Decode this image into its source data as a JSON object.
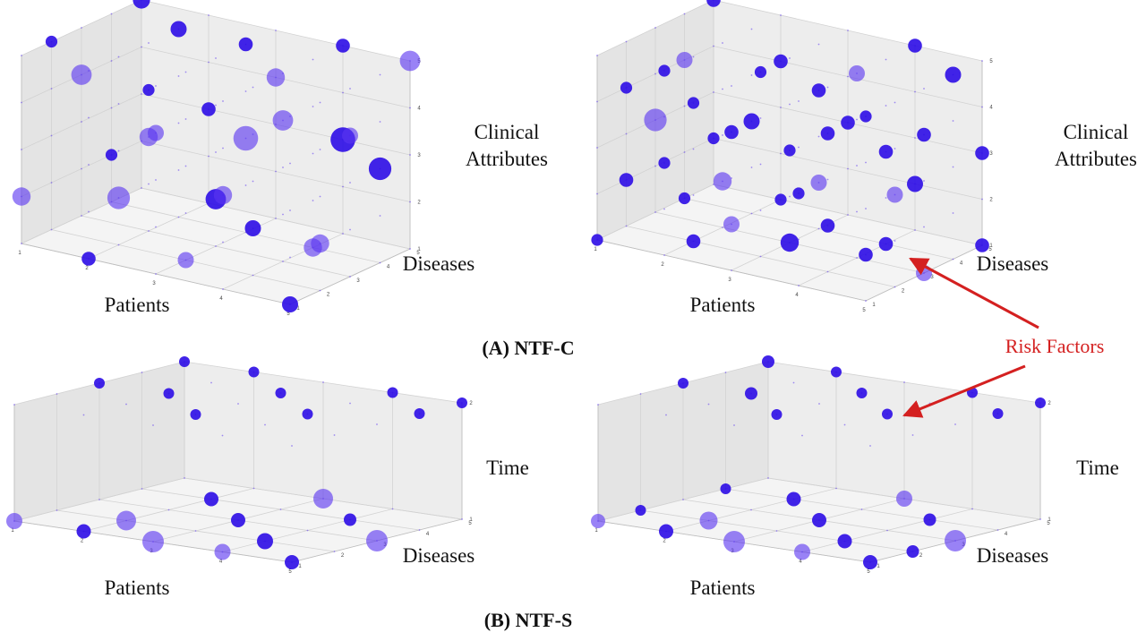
{
  "captions": {
    "a": "(A) NTF-C",
    "b": "(B) NTF-S"
  },
  "annotation": {
    "text": "Risk Factors",
    "color": "#d42020"
  },
  "colors": {
    "point": "#5b36f0",
    "point_dark": "#2c0ce6"
  },
  "chart_data": [
    {
      "panel": "A-left",
      "type": "scatter",
      "xlabel": "Patients",
      "ylabel": "Diseases",
      "zlabel": "Clinical\nAttributes",
      "xticks": [
        "1",
        "2",
        "3",
        "4",
        "5"
      ],
      "yticks": [
        "1",
        "2",
        "3",
        "4",
        "5"
      ],
      "zticks": [
        "1",
        "2",
        "3",
        "4",
        "5"
      ],
      "xlim": [
        1,
        5
      ],
      "ylim": [
        1,
        5
      ],
      "zlim": [
        1,
        5
      ],
      "grid": true,
      "points": [
        [
          1,
          5,
          5,
          0.55
        ],
        [
          1,
          3,
          4,
          0.7
        ],
        [
          1,
          1,
          2,
          0.6
        ],
        [
          1,
          2,
          5,
          0.3
        ],
        [
          2,
          4,
          5,
          0.5
        ],
        [
          2,
          3,
          3,
          0.6
        ],
        [
          2,
          2,
          2,
          0.8
        ],
        [
          2,
          1,
          1,
          0.4
        ],
        [
          3,
          5,
          4,
          0.6
        ],
        [
          3,
          4,
          3,
          0.9
        ],
        [
          3,
          3,
          2,
          0.7
        ],
        [
          3,
          2,
          1,
          0.5
        ],
        [
          4,
          5,
          5,
          0.4
        ],
        [
          4,
          3,
          4,
          0.7
        ],
        [
          4,
          2,
          2,
          0.5
        ],
        [
          4,
          1,
          3,
          0.6
        ],
        [
          5,
          4,
          3,
          0.8
        ],
        [
          5,
          2,
          2,
          0.6
        ],
        [
          5,
          1,
          1,
          0.5
        ],
        [
          5,
          5,
          5,
          0.7
        ],
        [
          2,
          5,
          3,
          0.4
        ],
        [
          3,
          1,
          4,
          0.5
        ],
        [
          4,
          4,
          1,
          0.6
        ],
        [
          1,
          4,
          2,
          0.3
        ],
        [
          3,
          4,
          5,
          0.4
        ],
        [
          5,
          3,
          4,
          0.5
        ],
        [
          4,
          5,
          3,
          0.9
        ],
        [
          2,
          3,
          4,
          0.3
        ]
      ]
    },
    {
      "panel": "A-right",
      "type": "scatter",
      "xlabel": "Patients",
      "ylabel": "Diseases",
      "zlabel": "Clinical\nAttributes",
      "xticks": [
        "1",
        "2",
        "3",
        "4",
        "5"
      ],
      "yticks": [
        "1",
        "2",
        "3",
        "4",
        "5"
      ],
      "zticks": [
        "1",
        "2",
        "3",
        "4",
        "5"
      ],
      "xlim": [
        1,
        5
      ],
      "ylim": [
        1,
        5
      ],
      "zlim": [
        1,
        5
      ],
      "grid": true,
      "points": [
        [
          1,
          5,
          5,
          0.4
        ],
        [
          1,
          4,
          4,
          0.5
        ],
        [
          1,
          3,
          3,
          0.8
        ],
        [
          1,
          2,
          2,
          0.4
        ],
        [
          1,
          1,
          1,
          0.3
        ],
        [
          2,
          5,
          4,
          0.4
        ],
        [
          2,
          4,
          3,
          0.5
        ],
        [
          2,
          3,
          2,
          0.6
        ],
        [
          2,
          2,
          1,
          0.4
        ],
        [
          2,
          1,
          5,
          0.3
        ],
        [
          3,
          5,
          3,
          0.4
        ],
        [
          3,
          4,
          2,
          0.5
        ],
        [
          3,
          3,
          1,
          0.6
        ],
        [
          3,
          2,
          5,
          0.3
        ],
        [
          3,
          1,
          4,
          0.4
        ],
        [
          4,
          5,
          2,
          0.5
        ],
        [
          4,
          4,
          1,
          0.4
        ],
        [
          4,
          3,
          5,
          0.5
        ],
        [
          4,
          2,
          4,
          0.4
        ],
        [
          4,
          1,
          3,
          0.3
        ],
        [
          5,
          5,
          1,
          0.4
        ],
        [
          5,
          4,
          5,
          0.5
        ],
        [
          5,
          3,
          4,
          0.4
        ],
        [
          5,
          2,
          3,
          0.5
        ],
        [
          5,
          1,
          2,
          0.4
        ],
        [
          1,
          4,
          1,
          0.3
        ],
        [
          2,
          2,
          4,
          0.3
        ],
        [
          3,
          4,
          4,
          0.4
        ],
        [
          4,
          2,
          2,
          0.4
        ],
        [
          5,
          1,
          5,
          0.3
        ],
        [
          2,
          5,
          1,
          0.3
        ],
        [
          3,
          1,
          2,
          0.5
        ],
        [
          4,
          4,
          3,
          0.4
        ],
        [
          5,
          3,
          1,
          0.5
        ],
        [
          1,
          2,
          4,
          0.3
        ],
        [
          3,
          3,
          3,
          0.3
        ],
        [
          4,
          5,
          5,
          0.4
        ],
        [
          2,
          1,
          3,
          0.3
        ],
        [
          5,
          5,
          3,
          0.4
        ],
        [
          1,
          5,
          2,
          0.3
        ]
      ]
    },
    {
      "panel": "B-left",
      "type": "scatter",
      "xlabel": "Patients",
      "ylabel": "Diseases",
      "zlabel": "Time",
      "xticks": [
        "1",
        "2",
        "3",
        "4",
        "5"
      ],
      "yticks": [
        "1",
        "2",
        "3",
        "4",
        "5"
      ],
      "zticks": [
        "1",
        "2"
      ],
      "xlim": [
        1,
        5
      ],
      "ylim": [
        1,
        5
      ],
      "zlim": [
        1,
        2
      ],
      "grid": true,
      "points": [
        [
          1,
          5,
          2,
          0.3
        ],
        [
          2,
          5,
          2,
          0.3
        ],
        [
          3,
          4,
          2,
          0.3
        ],
        [
          4,
          5,
          2,
          0.3
        ],
        [
          5,
          5,
          2,
          0.3
        ],
        [
          1,
          3,
          2,
          0.3
        ],
        [
          2,
          3,
          2,
          0.3
        ],
        [
          3,
          2,
          2,
          0.3
        ],
        [
          4,
          3,
          2,
          0.3
        ],
        [
          5,
          4,
          2,
          0.3
        ],
        [
          1,
          1,
          1,
          0.6
        ],
        [
          2,
          2,
          1,
          0.8
        ],
        [
          3,
          1,
          1,
          0.9
        ],
        [
          4,
          1,
          1,
          0.6
        ],
        [
          5,
          1,
          1,
          0.5
        ],
        [
          2,
          4,
          1,
          0.5
        ],
        [
          3,
          3,
          1,
          0.5
        ],
        [
          4,
          4,
          1,
          0.4
        ],
        [
          5,
          3,
          1,
          0.9
        ],
        [
          3,
          5,
          1,
          0.8
        ],
        [
          2,
          1,
          1,
          0.5
        ],
        [
          4,
          2,
          1,
          0.6
        ]
      ]
    },
    {
      "panel": "B-right",
      "type": "scatter",
      "xlabel": "Patients",
      "ylabel": "Diseases",
      "zlabel": "Time",
      "xticks": [
        "1",
        "2",
        "3",
        "4",
        "5"
      ],
      "yticks": [
        "1",
        "2",
        "3",
        "4",
        "5"
      ],
      "zticks": [
        "1",
        "2"
      ],
      "xlim": [
        1,
        5
      ],
      "ylim": [
        1,
        5
      ],
      "zlim": [
        1,
        2
      ],
      "grid": true,
      "points": [
        [
          1,
          5,
          2,
          0.4
        ],
        [
          2,
          5,
          2,
          0.3
        ],
        [
          3,
          4,
          2,
          0.3
        ],
        [
          4,
          5,
          2,
          0.3
        ],
        [
          5,
          5,
          2,
          0.3
        ],
        [
          1,
          3,
          2,
          0.3
        ],
        [
          2,
          3,
          2,
          0.4
        ],
        [
          3,
          2,
          2,
          0.3
        ],
        [
          4,
          3,
          2,
          0.3
        ],
        [
          5,
          4,
          2,
          0.3
        ],
        [
          1,
          1,
          1,
          0.5
        ],
        [
          2,
          2,
          1,
          0.7
        ],
        [
          3,
          1,
          1,
          0.9
        ],
        [
          4,
          1,
          1,
          0.6
        ],
        [
          5,
          1,
          1,
          0.5
        ],
        [
          2,
          4,
          1,
          0.5
        ],
        [
          3,
          3,
          1,
          0.5
        ],
        [
          4,
          4,
          1,
          0.4
        ],
        [
          5,
          3,
          1,
          0.9
        ],
        [
          3,
          5,
          1,
          0.6
        ],
        [
          2,
          1,
          1,
          0.5
        ],
        [
          4,
          2,
          1,
          0.5
        ],
        [
          1,
          2,
          1,
          0.3
        ],
        [
          5,
          2,
          1,
          0.4
        ],
        [
          1,
          4,
          1,
          0.3
        ]
      ]
    }
  ]
}
